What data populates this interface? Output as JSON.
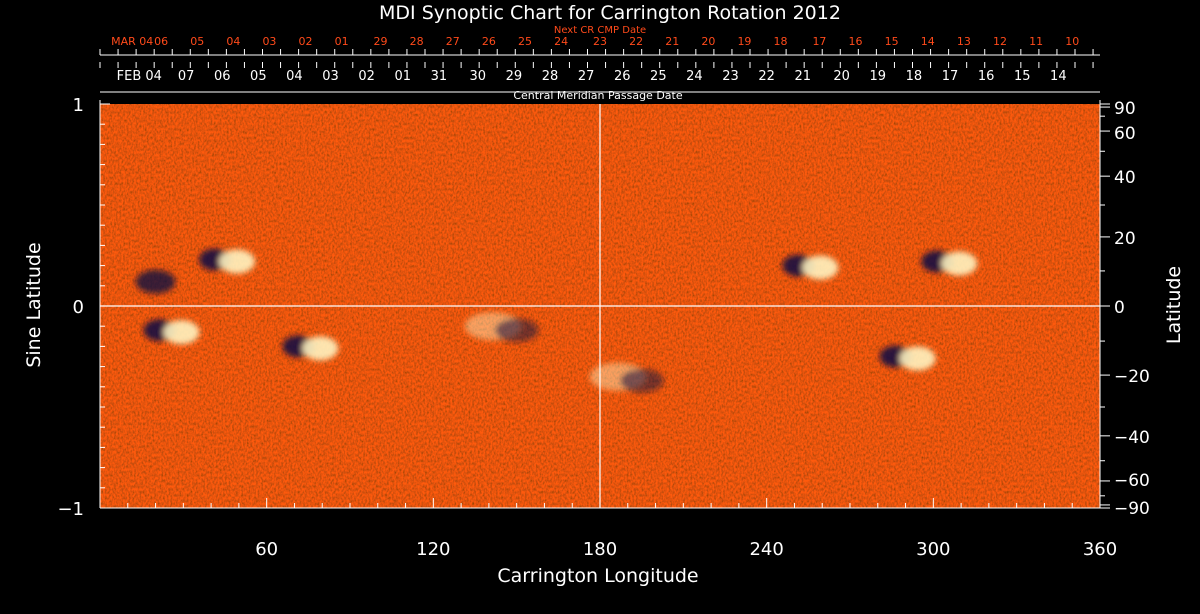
{
  "colors": {
    "background": "#000000",
    "text": "#ffffff",
    "accent_top": "#ff4a1a",
    "map_base": "#ff5a10",
    "map_positive": "#fff3c0",
    "map_negative": "#141040"
  },
  "chart_data": {
    "type": "heatmap",
    "title": "MDI Synoptic Chart for Carrington Rotation 2012",
    "xlabel": "Carrington Longitude",
    "ylabel": "Sine Latitude",
    "y2label": "Latitude",
    "xlim": [
      0,
      360
    ],
    "ylim": [
      -1,
      1
    ],
    "grid": false,
    "center_lines": {
      "x": 180,
      "y": 0
    },
    "x_ticks": [
      {
        "value": 60,
        "label": "60"
      },
      {
        "value": 120,
        "label": "120"
      },
      {
        "value": 180,
        "label": "180"
      },
      {
        "value": 240,
        "label": "240"
      },
      {
        "value": 300,
        "label": "300"
      },
      {
        "value": 360,
        "label": "360"
      }
    ],
    "y_ticks": [
      {
        "value": 1,
        "label": "1"
      },
      {
        "value": 0,
        "label": "0"
      },
      {
        "value": -1,
        "label": "−1"
      }
    ],
    "y2_ticks": [
      {
        "value": 90,
        "label": "90"
      },
      {
        "value": 60,
        "label": "60"
      },
      {
        "value": 40,
        "label": "40"
      },
      {
        "value": 20,
        "label": "20"
      },
      {
        "value": 0,
        "label": "0"
      },
      {
        "value": -20,
        "label": "−20"
      },
      {
        "value": -40,
        "label": "−40"
      },
      {
        "value": -60,
        "label": "−60"
      },
      {
        "value": -90,
        "label": "−90"
      }
    ],
    "top_axis_next": {
      "caption": "Next CR CMP Date",
      "labels": [
        {
          "longitude": 4,
          "label": "MAR 04"
        },
        {
          "longitude": 22,
          "label": "06"
        },
        {
          "longitude": 35,
          "label": "05"
        },
        {
          "longitude": 48,
          "label": "04"
        },
        {
          "longitude": 61,
          "label": "03"
        },
        {
          "longitude": 74,
          "label": "02"
        },
        {
          "longitude": 87,
          "label": "01"
        },
        {
          "longitude": 101,
          "label": "29"
        },
        {
          "longitude": 114,
          "label": "28"
        },
        {
          "longitude": 127,
          "label": "27"
        },
        {
          "longitude": 140,
          "label": "26"
        },
        {
          "longitude": 153,
          "label": "25"
        },
        {
          "longitude": 166,
          "label": "24"
        },
        {
          "longitude": 180,
          "label": "23"
        },
        {
          "longitude": 193,
          "label": "22"
        },
        {
          "longitude": 206,
          "label": "21"
        },
        {
          "longitude": 219,
          "label": "20"
        },
        {
          "longitude": 232,
          "label": "19"
        },
        {
          "longitude": 245,
          "label": "18"
        },
        {
          "longitude": 259,
          "label": "17"
        },
        {
          "longitude": 272,
          "label": "16"
        },
        {
          "longitude": 285,
          "label": "15"
        },
        {
          "longitude": 298,
          "label": "14"
        },
        {
          "longitude": 311,
          "label": "13"
        },
        {
          "longitude": 324,
          "label": "12"
        },
        {
          "longitude": 337,
          "label": "11"
        },
        {
          "longitude": 350,
          "label": "10"
        }
      ]
    },
    "top_axis_cmp": {
      "caption": "Central Meridian Passage Date",
      "labels": [
        {
          "longitude": 6,
          "label": "FEB 04"
        },
        {
          "longitude": 31,
          "label": "07"
        },
        {
          "longitude": 44,
          "label": "06"
        },
        {
          "longitude": 57,
          "label": "05"
        },
        {
          "longitude": 70,
          "label": "04"
        },
        {
          "longitude": 83,
          "label": "03"
        },
        {
          "longitude": 96,
          "label": "02"
        },
        {
          "longitude": 109,
          "label": "01"
        },
        {
          "longitude": 122,
          "label": "31"
        },
        {
          "longitude": 136,
          "label": "30"
        },
        {
          "longitude": 149,
          "label": "29"
        },
        {
          "longitude": 162,
          "label": "28"
        },
        {
          "longitude": 175,
          "label": "27"
        },
        {
          "longitude": 188,
          "label": "26"
        },
        {
          "longitude": 201,
          "label": "25"
        },
        {
          "longitude": 214,
          "label": "24"
        },
        {
          "longitude": 227,
          "label": "23"
        },
        {
          "longitude": 240,
          "label": "22"
        },
        {
          "longitude": 253,
          "label": "21"
        },
        {
          "longitude": 267,
          "label": "20"
        },
        {
          "longitude": 280,
          "label": "19"
        },
        {
          "longitude": 293,
          "label": "18"
        },
        {
          "longitude": 306,
          "label": "17"
        },
        {
          "longitude": 319,
          "label": "16"
        },
        {
          "longitude": 332,
          "label": "15"
        },
        {
          "longitude": 345,
          "label": "14"
        }
      ]
    },
    "active_regions": [
      {
        "longitude": 45,
        "sin_lat": 0.23,
        "polarity": "bipolar"
      },
      {
        "longitude": 20,
        "sin_lat": 0.12,
        "polarity": "negative"
      },
      {
        "longitude": 25,
        "sin_lat": -0.12,
        "polarity": "bipolar"
      },
      {
        "longitude": 75,
        "sin_lat": -0.2,
        "polarity": "bipolar"
      },
      {
        "longitude": 145,
        "sin_lat": -0.1,
        "polarity": "mixed"
      },
      {
        "longitude": 190,
        "sin_lat": -0.35,
        "polarity": "mixed"
      },
      {
        "longitude": 255,
        "sin_lat": 0.2,
        "polarity": "bipolar"
      },
      {
        "longitude": 290,
        "sin_lat": -0.25,
        "polarity": "bipolar"
      },
      {
        "longitude": 305,
        "sin_lat": 0.22,
        "polarity": "bipolar"
      }
    ]
  }
}
